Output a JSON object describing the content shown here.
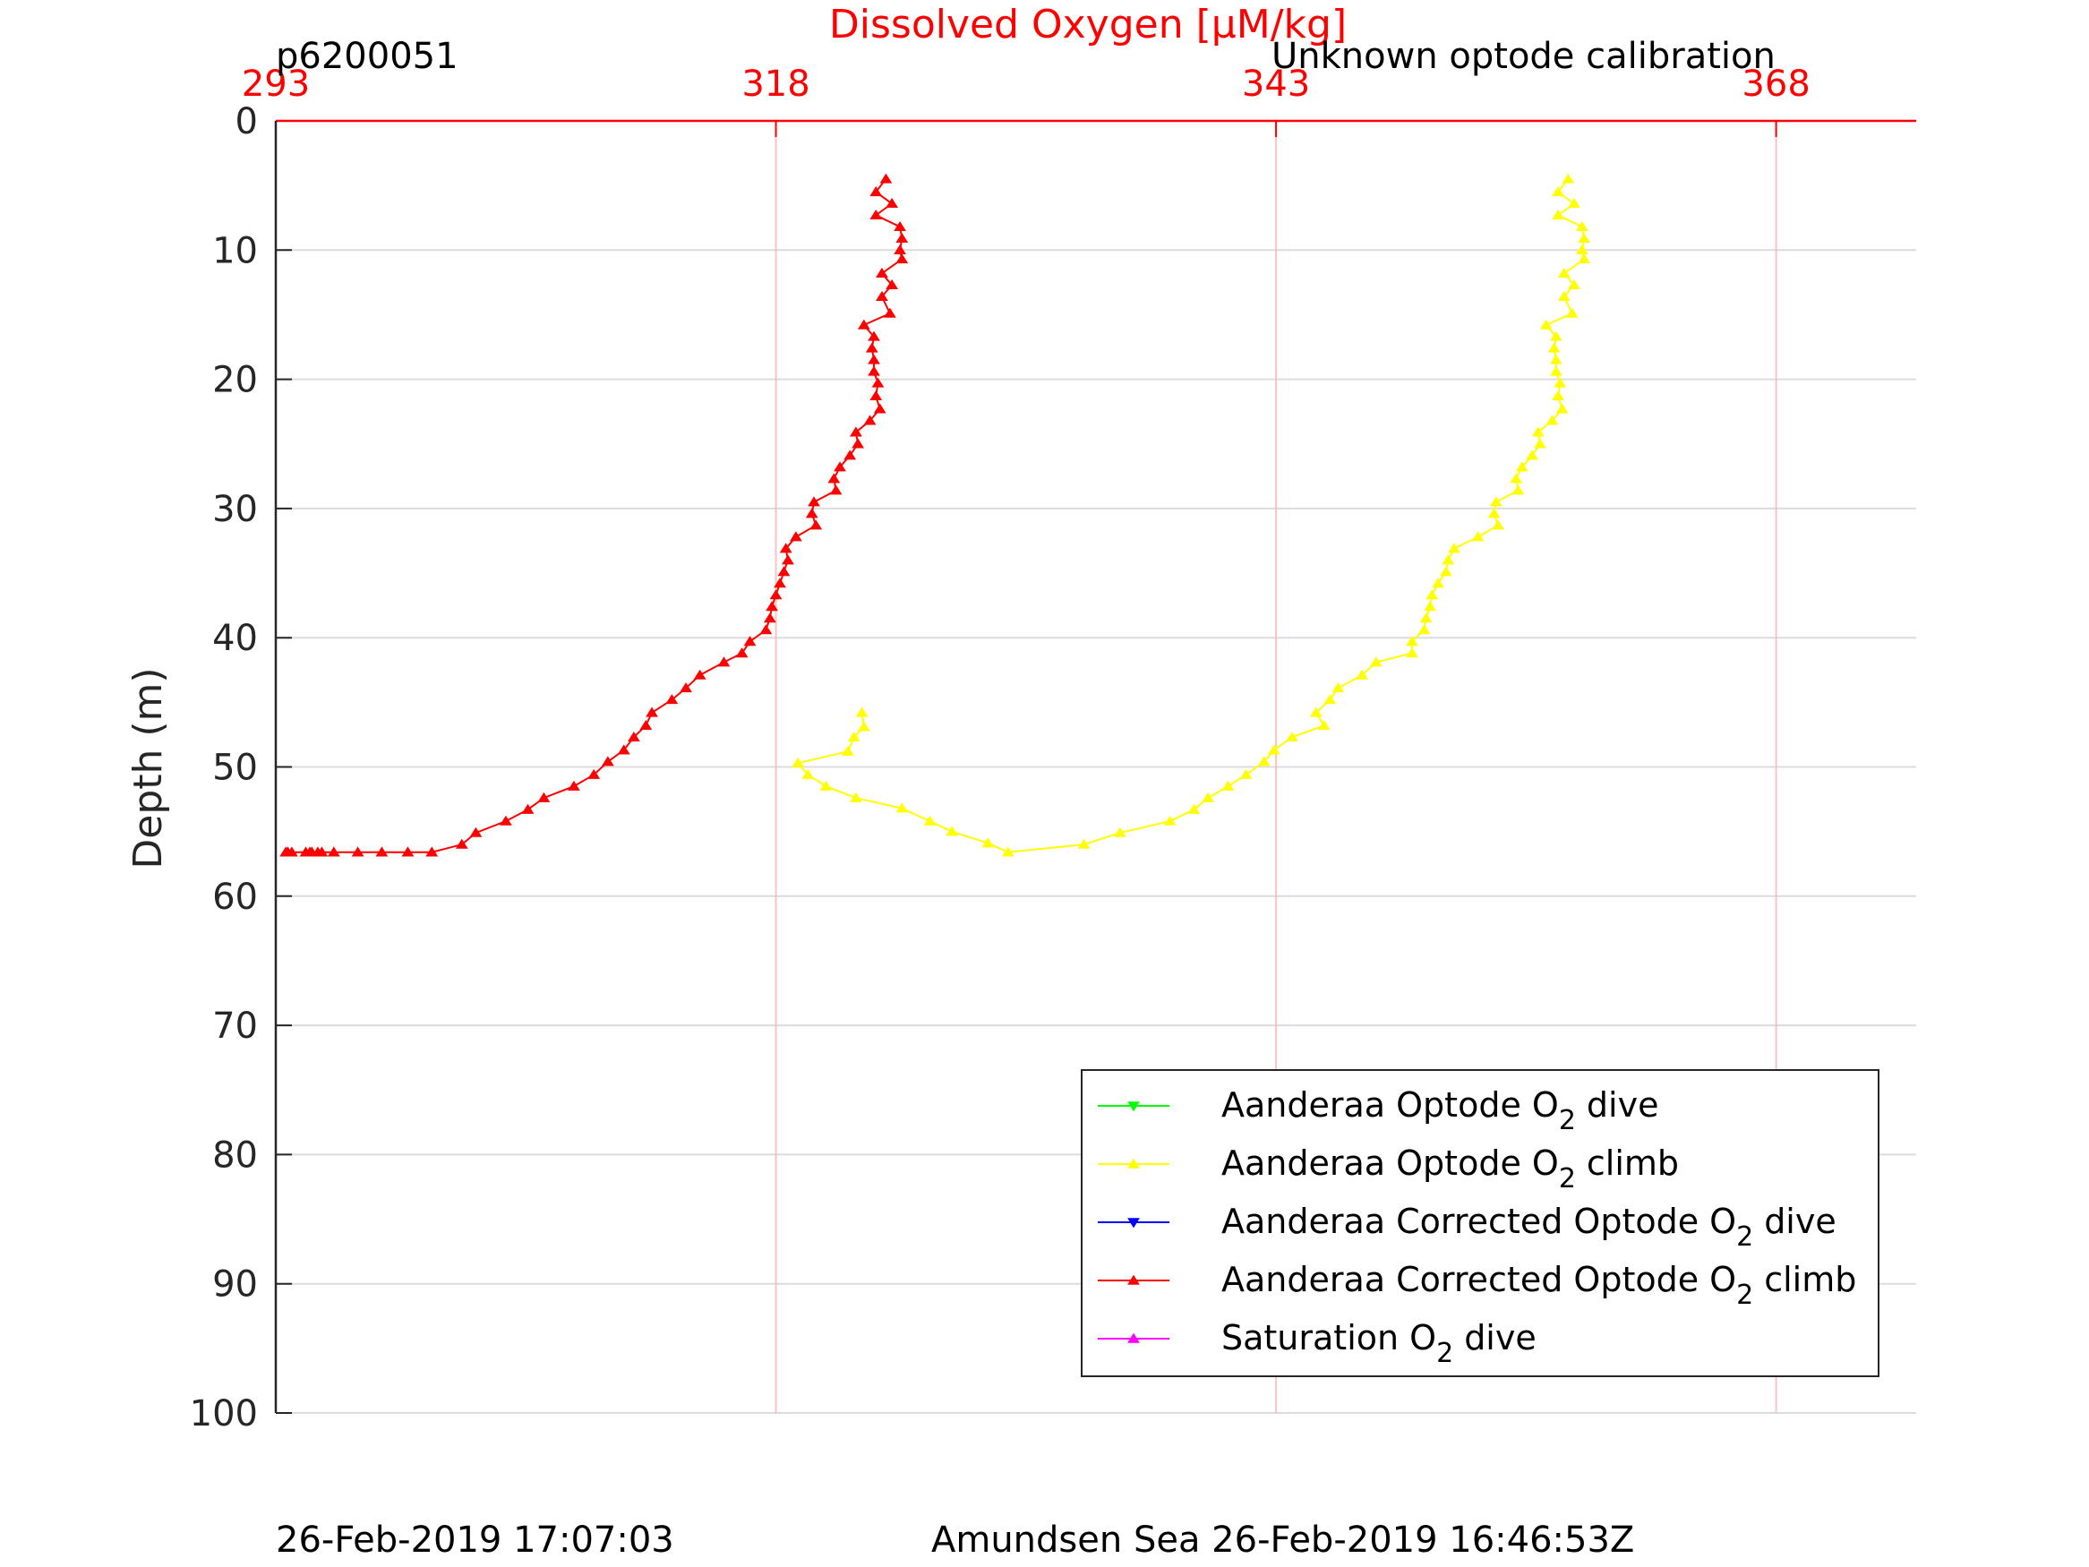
{
  "chart_data": {
    "type": "line",
    "title": "Dissolved Oxygen [μM/kg]",
    "top_left_label": "p6200051",
    "top_right_label": "Unknown optode calibration",
    "xlabel": "Dissolved Oxygen [μM/kg]",
    "ylabel": "Depth (m)",
    "xlim": [
      293,
      375
    ],
    "ylim": [
      0,
      100
    ],
    "y_reversed": true,
    "x_axis_position": "top",
    "x_ticks": [
      293,
      318,
      343,
      368
    ],
    "y_ticks": [
      0,
      10,
      20,
      30,
      40,
      50,
      60,
      70,
      80,
      90,
      100
    ],
    "grid": true,
    "legend_position": "bottom-right",
    "axis_color": "#ff0000",
    "series": [
      {
        "name": "Aanderaa Optode O",
        "name_sub": "2",
        "name_tail": "dive",
        "color": "#00ff00",
        "marker": "triangle-down",
        "x": [],
        "y": []
      },
      {
        "name": "Aanderaa Optode O",
        "name_sub": "2",
        "name_tail": "climb",
        "color": "#ffff00",
        "marker": "triangle-up",
        "x": [
          357.6,
          357.1,
          357.9,
          357.1,
          358.3,
          358.4,
          358.3,
          358.4,
          357.4,
          357.9,
          357.4,
          357.8,
          356.5,
          357.0,
          356.9,
          357.0,
          357.0,
          357.2,
          357.1,
          357.3,
          356.8,
          356.1,
          356.2,
          355.8,
          355.3,
          355.0,
          355.1,
          354.0,
          353.9,
          354.1,
          353.1,
          351.9,
          351.6,
          351.5,
          351.1,
          350.8,
          350.7,
          350.5,
          350.4,
          349.8,
          349.8,
          348.0,
          347.3,
          346.1,
          345.7,
          345.0,
          345.4,
          343.8,
          342.9,
          342.4,
          341.5,
          340.6,
          339.6,
          338.9,
          337.7,
          335.2,
          333.4,
          329.6,
          328.6,
          326.8,
          325.7,
          324.3,
          322.0,
          320.5,
          319.6,
          319.1,
          321.6,
          321.9,
          322.4,
          322.3
        ],
        "y": [
          4.5,
          5.5,
          6.4,
          7.3,
          8.2,
          9.1,
          10.0,
          10.7,
          11.8,
          12.7,
          13.6,
          14.9,
          15.8,
          16.7,
          17.6,
          18.5,
          19.4,
          20.3,
          21.3,
          22.3,
          23.2,
          24.1,
          25.0,
          25.9,
          26.8,
          27.7,
          28.6,
          29.5,
          30.4,
          31.3,
          32.2,
          33.1,
          34.0,
          34.9,
          35.8,
          36.7,
          37.6,
          38.5,
          39.4,
          40.3,
          41.2,
          41.9,
          42.9,
          43.9,
          44.8,
          45.8,
          46.8,
          47.7,
          48.7,
          49.6,
          50.6,
          51.5,
          52.4,
          53.3,
          54.2,
          55.1,
          56.0,
          56.6,
          55.9,
          55.0,
          54.2,
          53.2,
          52.4,
          51.5,
          50.6,
          49.7,
          48.8,
          47.7,
          46.9,
          45.8
        ]
      },
      {
        "name": "Aanderaa Corrected Optode O",
        "name_sub": "2",
        "name_tail": "dive",
        "color": "#0000ff",
        "marker": "triangle-down",
        "x": [],
        "y": []
      },
      {
        "name": "Aanderaa Corrected Optode O",
        "name_sub": "2",
        "name_tail": "climb",
        "color": "#ff0000",
        "marker": "triangle-up",
        "x": [
          323.5,
          323.0,
          323.8,
          323.0,
          324.2,
          324.3,
          324.2,
          324.3,
          323.3,
          323.8,
          323.3,
          323.7,
          322.4,
          322.9,
          322.8,
          322.9,
          322.9,
          323.1,
          323.0,
          323.2,
          322.7,
          322.0,
          322.1,
          321.7,
          321.2,
          320.9,
          321.0,
          319.9,
          319.8,
          320.0,
          319.0,
          318.5,
          318.6,
          318.4,
          318.2,
          318.0,
          317.8,
          317.7,
          317.5,
          316.7,
          316.3,
          315.4,
          314.2,
          313.5,
          312.8,
          311.8,
          311.5,
          310.9,
          310.4,
          309.6,
          308.9,
          307.9,
          306.4,
          305.6,
          304.5,
          303.0,
          302.3,
          300.8,
          299.6,
          298.3,
          297.1,
          295.9,
          295.3,
          295.1,
          294.8,
          294.7,
          294.5,
          293.8,
          293.6,
          293.5
        ],
        "y": [
          4.5,
          5.5,
          6.4,
          7.3,
          8.2,
          9.1,
          10.0,
          10.7,
          11.8,
          12.7,
          13.6,
          14.9,
          15.8,
          16.7,
          17.6,
          18.5,
          19.4,
          20.3,
          21.3,
          22.3,
          23.2,
          24.1,
          25.0,
          25.9,
          26.8,
          27.7,
          28.6,
          29.5,
          30.4,
          31.3,
          32.2,
          33.1,
          34.0,
          34.9,
          35.8,
          36.7,
          37.6,
          38.5,
          39.4,
          40.3,
          41.2,
          41.9,
          42.9,
          43.9,
          44.8,
          45.8,
          46.8,
          47.7,
          48.7,
          49.6,
          50.6,
          51.5,
          52.4,
          53.3,
          54.2,
          55.1,
          56.0,
          56.6,
          56.6,
          56.6,
          56.6,
          56.6,
          56.6,
          56.6,
          56.6,
          56.6,
          56.6,
          56.6,
          56.6,
          56.6
        ]
      },
      {
        "name": "Saturation O",
        "name_sub": "2",
        "name_tail": "dive",
        "color": "#ff00ff",
        "marker": "triangle-up",
        "x": [],
        "y": []
      }
    ]
  },
  "footer": {
    "left": "26-Feb-2019 17:07:03",
    "center": "Amundsen Sea 26-Feb-2019 16:46:53Z"
  }
}
